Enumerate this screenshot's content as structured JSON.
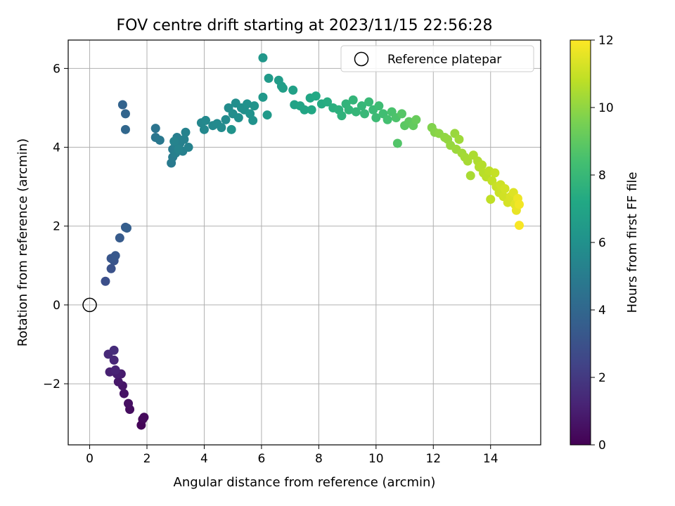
{
  "chart_data": {
    "type": "scatter",
    "title": "FOV centre drift starting at 2023/11/15 22:56:28",
    "xlabel": "Angular distance from reference (arcmin)",
    "ylabel": "Rotation from reference (arcmin)",
    "xlim": [
      -0.75,
      15.75
    ],
    "ylim": [
      -3.55,
      6.72
    ],
    "xticks": [
      0,
      2,
      4,
      6,
      8,
      10,
      12,
      14
    ],
    "xtick_labels": [
      "0",
      "2",
      "4",
      "6",
      "8",
      "10",
      "12",
      "14"
    ],
    "yticks": [
      -2,
      0,
      2,
      4,
      6
    ],
    "ytick_labels": [
      "−2",
      "0",
      "2",
      "4",
      "6"
    ],
    "grid": true,
    "legend": {
      "placement": "upper-right",
      "entries": [
        "Reference platepar"
      ]
    },
    "reference_point": {
      "x": 0,
      "y": 0,
      "label": "Reference platepar",
      "marker": "open-circle"
    },
    "colorbar": {
      "label": "Hours from first FF file",
      "colormap": "viridis",
      "range": [
        0,
        12
      ],
      "ticks": [
        0,
        2,
        4,
        6,
        8,
        10,
        12
      ],
      "tick_labels": [
        "0",
        "2",
        "4",
        "6",
        "8",
        "10",
        "12"
      ]
    },
    "series": [
      {
        "color_value": "hours",
        "points": [
          [
            1.8,
            -3.05,
            0.1
          ],
          [
            1.85,
            -2.9,
            0.2
          ],
          [
            1.9,
            -2.85,
            0.3
          ],
          [
            1.4,
            -2.65,
            0.4
          ],
          [
            1.35,
            -2.5,
            0.5
          ],
          [
            1.2,
            -2.25,
            0.6
          ],
          [
            1.15,
            -2.05,
            0.7
          ],
          [
            1.0,
            -1.95,
            0.8
          ],
          [
            1.1,
            -1.75,
            0.9
          ],
          [
            0.95,
            -1.75,
            1.0
          ],
          [
            0.7,
            -1.7,
            1.1
          ],
          [
            0.9,
            -1.65,
            1.2
          ],
          [
            0.85,
            -1.4,
            1.3
          ],
          [
            0.65,
            -1.25,
            1.4
          ],
          [
            0.85,
            -1.15,
            1.5
          ],
          [
            0.55,
            0.6,
            2.9
          ],
          [
            0.75,
            0.92,
            3.0
          ],
          [
            0.85,
            1.12,
            3.1
          ],
          [
            0.75,
            1.18,
            3.2
          ],
          [
            0.9,
            1.25,
            3.3
          ],
          [
            1.05,
            1.7,
            3.4
          ],
          [
            1.25,
            1.97,
            3.5
          ],
          [
            1.3,
            1.95,
            3.6
          ],
          [
            1.15,
            5.08,
            3.8
          ],
          [
            1.25,
            4.85,
            3.9
          ],
          [
            1.25,
            4.45,
            4.0
          ],
          [
            2.3,
            4.48,
            4.6
          ],
          [
            2.3,
            4.25,
            4.7
          ],
          [
            2.45,
            4.18,
            4.8
          ],
          [
            2.85,
            3.6,
            4.9
          ],
          [
            2.9,
            3.75,
            5.0
          ],
          [
            2.9,
            3.95,
            5.0
          ],
          [
            3.0,
            4.05,
            5.1
          ],
          [
            3.05,
            4.25,
            5.1
          ],
          [
            3.0,
            3.85,
            5.15
          ],
          [
            3.15,
            4.1,
            5.2
          ],
          [
            3.25,
            3.9,
            5.2
          ],
          [
            3.3,
            4.2,
            5.25
          ],
          [
            3.35,
            4.38,
            5.3
          ],
          [
            3.45,
            4.0,
            5.3
          ],
          [
            2.95,
            4.15,
            5.35
          ],
          [
            3.1,
            3.95,
            5.35
          ],
          [
            3.9,
            4.62,
            5.5
          ],
          [
            4.0,
            4.45,
            5.55
          ],
          [
            4.05,
            4.68,
            5.6
          ],
          [
            4.3,
            4.55,
            5.6
          ],
          [
            4.45,
            4.6,
            5.65
          ],
          [
            4.6,
            4.5,
            5.7
          ],
          [
            4.75,
            4.7,
            5.7
          ],
          [
            4.85,
            5.0,
            5.75
          ],
          [
            5.0,
            4.85,
            5.8
          ],
          [
            5.1,
            5.12,
            5.85
          ],
          [
            5.2,
            4.75,
            5.85
          ],
          [
            5.3,
            5.0,
            5.9
          ],
          [
            5.4,
            4.95,
            5.95
          ],
          [
            5.5,
            5.1,
            6.0
          ],
          [
            5.6,
            4.85,
            6.05
          ],
          [
            5.7,
            4.68,
            6.05
          ],
          [
            5.75,
            5.05,
            6.1
          ],
          [
            4.95,
            4.45,
            6.1
          ],
          [
            6.05,
            6.27,
            6.3
          ],
          [
            6.05,
            5.27,
            6.35
          ],
          [
            6.2,
            4.82,
            6.4
          ],
          [
            6.25,
            5.75,
            6.45
          ],
          [
            6.6,
            5.7,
            6.6
          ],
          [
            6.7,
            5.55,
            6.65
          ],
          [
            6.75,
            5.5,
            6.7
          ],
          [
            7.1,
            5.45,
            6.8
          ],
          [
            7.15,
            5.08,
            6.9
          ],
          [
            7.35,
            5.05,
            7.0
          ],
          [
            7.5,
            4.95,
            7.05
          ],
          [
            7.7,
            5.25,
            7.1
          ],
          [
            7.75,
            4.95,
            7.15
          ],
          [
            7.9,
            5.3,
            7.2
          ],
          [
            8.1,
            5.1,
            7.3
          ],
          [
            8.3,
            5.15,
            7.4
          ],
          [
            8.5,
            5.0,
            7.5
          ],
          [
            8.7,
            4.95,
            7.6
          ],
          [
            8.8,
            4.8,
            7.7
          ],
          [
            8.95,
            5.1,
            7.75
          ],
          [
            9.05,
            4.95,
            7.8
          ],
          [
            9.2,
            5.2,
            7.85
          ],
          [
            9.3,
            4.9,
            7.9
          ],
          [
            9.5,
            5.05,
            7.95
          ],
          [
            9.6,
            4.85,
            8.0
          ],
          [
            9.75,
            5.15,
            8.05
          ],
          [
            9.9,
            4.95,
            8.1
          ],
          [
            10.0,
            4.75,
            8.15
          ],
          [
            10.1,
            5.05,
            8.2
          ],
          [
            10.25,
            4.85,
            8.3
          ],
          [
            10.4,
            4.7,
            8.4
          ],
          [
            10.55,
            4.9,
            8.5
          ],
          [
            10.7,
            4.75,
            8.6
          ],
          [
            10.75,
            4.1,
            8.7
          ],
          [
            10.9,
            4.85,
            8.8
          ],
          [
            11.0,
            4.55,
            8.9
          ],
          [
            11.15,
            4.65,
            9.0
          ],
          [
            11.3,
            4.55,
            9.1
          ],
          [
            11.4,
            4.7,
            9.2
          ],
          [
            11.95,
            4.5,
            9.7
          ],
          [
            12.05,
            4.38,
            9.8
          ],
          [
            12.2,
            4.35,
            9.9
          ],
          [
            12.4,
            4.25,
            10.0
          ],
          [
            12.5,
            4.2,
            10.05
          ],
          [
            12.6,
            4.05,
            10.1
          ],
          [
            12.75,
            4.35,
            10.15
          ],
          [
            12.8,
            3.95,
            10.2
          ],
          [
            12.9,
            4.2,
            10.25
          ],
          [
            13.0,
            3.85,
            10.3
          ],
          [
            13.1,
            3.75,
            10.35
          ],
          [
            13.2,
            3.65,
            10.4
          ],
          [
            13.3,
            3.28,
            10.45
          ],
          [
            13.4,
            3.8,
            10.5
          ],
          [
            13.55,
            3.65,
            10.55
          ],
          [
            13.6,
            3.5,
            10.6
          ],
          [
            13.7,
            3.55,
            10.65
          ],
          [
            13.75,
            3.35,
            10.7
          ],
          [
            13.85,
            3.25,
            10.75
          ],
          [
            13.95,
            3.4,
            10.8
          ],
          [
            14.0,
            2.68,
            10.85
          ],
          [
            14.05,
            3.15,
            10.9
          ],
          [
            14.15,
            3.35,
            10.95
          ],
          [
            14.2,
            3.0,
            11.0
          ],
          [
            14.3,
            2.85,
            11.05
          ],
          [
            14.35,
            3.05,
            11.1
          ],
          [
            14.45,
            2.75,
            11.15
          ],
          [
            14.5,
            2.95,
            11.2
          ],
          [
            14.6,
            2.6,
            11.25
          ],
          [
            14.7,
            2.75,
            11.3
          ],
          [
            14.8,
            2.85,
            11.4
          ],
          [
            14.85,
            2.55,
            11.5
          ],
          [
            14.9,
            2.4,
            11.6
          ],
          [
            14.95,
            2.7,
            11.7
          ],
          [
            15.0,
            2.55,
            11.8
          ],
          [
            15.0,
            2.02,
            11.9
          ]
        ]
      }
    ]
  }
}
